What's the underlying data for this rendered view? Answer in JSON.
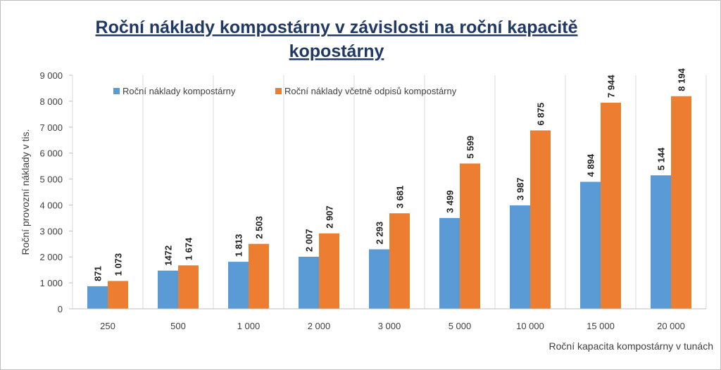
{
  "chart_data": {
    "type": "bar",
    "title_line1": "Roční náklady kompostárny v závislosti na roční kapacitě",
    "title_line2": "kopostárny",
    "xlabel": "Roční kapacita kompostárny v tunách",
    "ylabel": "Roční  provozní náklady v tis.",
    "ylim": [
      0,
      9000
    ],
    "yticks": [
      0,
      1000,
      2000,
      3000,
      4000,
      5000,
      6000,
      7000,
      8000,
      9000
    ],
    "ytick_labels": [
      "0",
      "1 000",
      "2 000",
      "3 000",
      "4 000",
      "5 000",
      "6 000",
      "7 000",
      "8 000",
      "9 000"
    ],
    "grid": "vertical",
    "legend_position": "top-left",
    "categories": [
      "250",
      "500",
      "1 000",
      "2 000",
      "3 000",
      "5 000",
      "10 000",
      "15 000",
      "20 000"
    ],
    "series": [
      {
        "name": "Roční náklady kompostárny",
        "color": "#5b9bd5",
        "values": [
          871,
          1472,
          1813,
          2007,
          2293,
          3499,
          3987,
          4894,
          5144
        ],
        "labels": [
          "871",
          "1472",
          "1 813",
          "2 007",
          "2 293",
          "3 499",
          "3 987",
          "4 894",
          "5 144"
        ]
      },
      {
        "name": "Roční náklady včetně odpisů kompostárny",
        "color": "#ed7d31",
        "values": [
          1073,
          1674,
          2503,
          2907,
          3681,
          5599,
          6875,
          7944,
          8194
        ],
        "labels": [
          "1 073",
          "1 674",
          "2 503",
          "2 907",
          "3 681",
          "5 599",
          "6 875",
          "7 944",
          "8 194"
        ]
      }
    ]
  }
}
